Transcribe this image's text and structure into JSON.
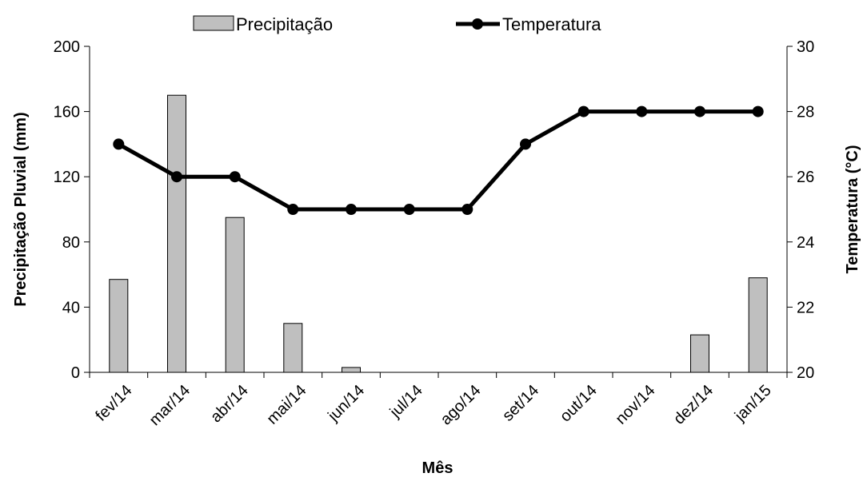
{
  "chart_data": {
    "type": "bar+line",
    "categories": [
      "fev/14",
      "mar/14",
      "abr/14",
      "mai/14",
      "jun/14",
      "jul/14",
      "ago/14",
      "set/14",
      "out/14",
      "nov/14",
      "dez/14",
      "jan/15"
    ],
    "series": [
      {
        "name": "Precipitação",
        "type": "bar",
        "axis": "left",
        "values": [
          57,
          170,
          95,
          30,
          3,
          0,
          0,
          0,
          0,
          0,
          23,
          58
        ],
        "color": "#bfbfbf"
      },
      {
        "name": "Temperatura",
        "type": "line",
        "axis": "right",
        "values": [
          27,
          26,
          26,
          25,
          25,
          25,
          25,
          27,
          28,
          28,
          28,
          28
        ],
        "color": "#000000"
      }
    ],
    "xlabel": "Mês",
    "ylabel_left": "Precipitação Pluvial (mm)",
    "ylabel_right": "Temperatura (°C)",
    "ylim_left": [
      0,
      200
    ],
    "yticks_left": [
      "0",
      "40",
      "80",
      "120",
      "160",
      "200"
    ],
    "ylim_right": [
      20,
      30
    ],
    "yticks_right": [
      "20",
      "22",
      "24",
      "26",
      "28",
      "30"
    ],
    "grid": false,
    "legend_position": "top"
  }
}
